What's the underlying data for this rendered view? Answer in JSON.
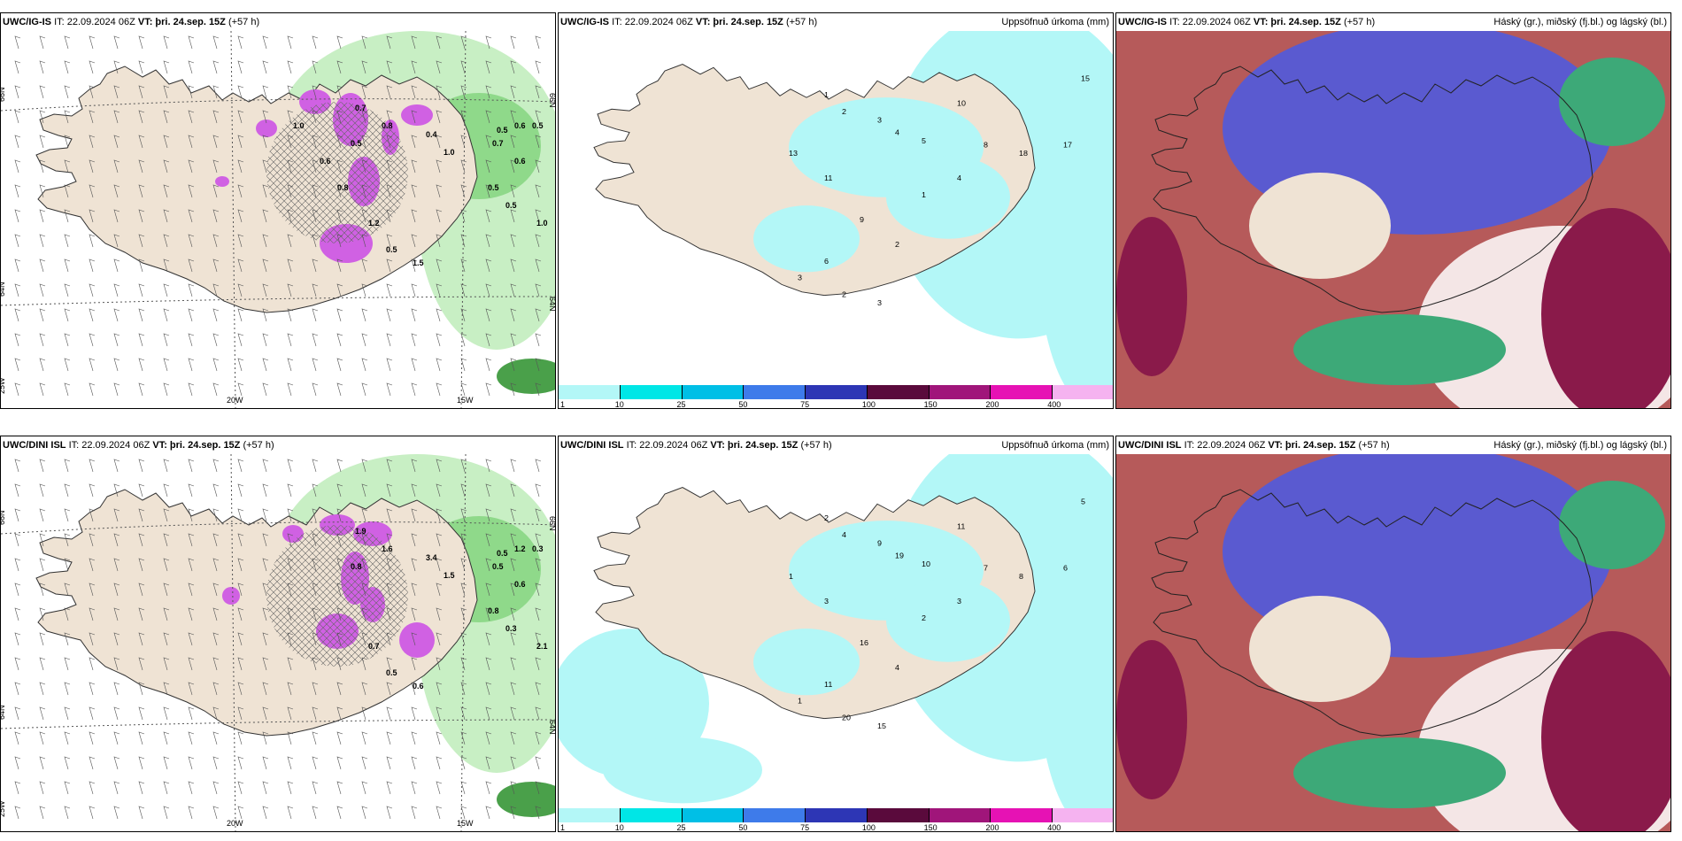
{
  "panels": [
    {
      "id": "p1",
      "model": "UWC/IG-IS",
      "it": "IT: 22.09.2024 06Z",
      "vt_label": "VT:",
      "vt": "þri. 24.sep. 15Z",
      "lead": "(+57 h)",
      "right_title": "",
      "type": "wind_precip",
      "axis_labels": [
        "66N",
        "64N",
        "25W",
        "20W",
        "15W",
        "66N",
        "64N"
      ],
      "value_labels": [
        "0.6",
        "0.5",
        "0.5",
        "0.7",
        "0.6",
        "0.5",
        "1.0",
        "0.5",
        "0.7",
        "0.8",
        "0.4",
        "1.0",
        "1.2",
        "0.5",
        "1.5",
        "0.5",
        "0.6",
        "0.8",
        "1.0"
      ]
    },
    {
      "id": "p2",
      "model": "UWC/IG-IS",
      "it": "IT: 22.09.2024 06Z",
      "vt_label": "VT:",
      "vt": "þri. 24.sep. 15Z",
      "lead": "(+57 h)",
      "right_title": "Uppsöfnuð úrkoma (mm)",
      "type": "accum",
      "value_labels": [
        "1",
        "2",
        "3",
        "4",
        "5",
        "10",
        "8",
        "18",
        "17",
        "15",
        "11",
        "13",
        "9",
        "6",
        "2",
        "3",
        "1",
        "4",
        "2",
        "3"
      ],
      "colorbar_ticks": [
        "1",
        "10",
        "25",
        "50",
        "75",
        "100",
        "150",
        "200",
        "400"
      ],
      "colorbar_colors": [
        "#b3f7f7",
        "#00e6e6",
        "#00bfe6",
        "#3e7bea",
        "#2d36b5",
        "#5a0a3c",
        "#a0157a",
        "#e612b4",
        "#f5b3f0"
      ]
    },
    {
      "id": "p3",
      "model": "UWC/IG-IS",
      "it": "IT: 22.09.2024 06Z",
      "vt_label": "VT:",
      "vt": "þri. 24.sep. 15Z",
      "lead": "(+57 h)",
      "right_title": "Háský (gr.), miðský (fj.bl.) og lágský (bl.)",
      "type": "clouds"
    },
    {
      "id": "p4",
      "model": "UWC/DINI ISL",
      "it": "IT: 22.09.2024 06Z",
      "vt_label": "VT:",
      "vt": "þri. 24.sep. 15Z",
      "lead": "(+57 h)",
      "right_title": "",
      "type": "wind_precip",
      "axis_labels": [
        "66N",
        "64N",
        "25W",
        "20W",
        "15W",
        "66N",
        "64N"
      ],
      "value_labels": [
        "1.2",
        "0.3",
        "0.5",
        "0.5",
        "0.6",
        "0.8",
        "2.1",
        "0.3",
        "1.9",
        "1.6",
        "3.4",
        "1.5",
        "0.7",
        "0.5",
        "0.6",
        "0.8"
      ]
    },
    {
      "id": "p5",
      "model": "UWC/DINI ISL",
      "it": "IT: 22.09.2024 06Z",
      "vt_label": "VT:",
      "vt": "þri. 24.sep. 15Z",
      "lead": "(+57 h)",
      "right_title": "Uppsöfnuð úrkoma (mm)",
      "type": "accum",
      "value_labels": [
        "2",
        "4",
        "9",
        "19",
        "10",
        "11",
        "7",
        "8",
        "6",
        "5",
        "3",
        "1",
        "16",
        "11",
        "20",
        "15",
        "2",
        "3",
        "4",
        "1"
      ],
      "colorbar_ticks": [
        "1",
        "10",
        "25",
        "50",
        "75",
        "100",
        "150",
        "200",
        "400"
      ],
      "colorbar_colors": [
        "#b3f7f7",
        "#00e6e6",
        "#00bfe6",
        "#3e7bea",
        "#2d36b5",
        "#5a0a3c",
        "#a0157a",
        "#e612b4",
        "#f5b3f0"
      ]
    },
    {
      "id": "p6",
      "model": "UWC/DINI ISL",
      "it": "IT: 22.09.2024 06Z",
      "vt_label": "VT:",
      "vt": "þri. 24.sep. 15Z",
      "lead": "(+57 h)",
      "right_title": "Háský (gr.), miðský (fj.bl.) og lágský (bl.)",
      "type": "clouds"
    }
  ],
  "colors": {
    "land": "#efe3d4",
    "sea_precip": "#b3f7f7",
    "green_light": "#c8efc4",
    "green_mid": "#8fd98a",
    "magenta": "#d061e3",
    "cloud_blue": "#5a5ad0",
    "cloud_red": "#b65a5a",
    "cloud_maroon": "#8a1a4a",
    "cloud_green": "#3da978"
  }
}
